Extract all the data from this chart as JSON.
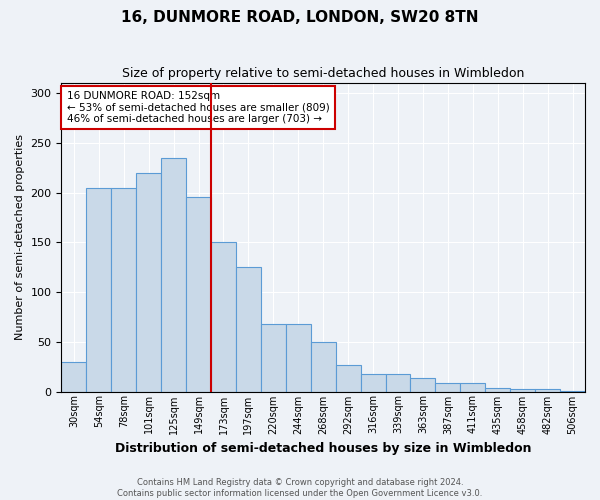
{
  "title": "16, DUNMORE ROAD, LONDON, SW20 8TN",
  "subtitle": "Size of property relative to semi-detached houses in Wimbledon",
  "xlabel": "Distribution of semi-detached houses by size in Wimbledon",
  "ylabel": "Number of semi-detached properties",
  "footer1": "Contains HM Land Registry data © Crown copyright and database right 2024.",
  "footer2": "Contains public sector information licensed under the Open Government Licence v3.0.",
  "annotation_line1": "16 DUNMORE ROAD: 152sqm",
  "annotation_line2": "← 53% of semi-detached houses are smaller (809)",
  "annotation_line3": "46% of semi-detached houses are larger (703) →",
  "property_size": 152,
  "bar_color": "#c9d9e8",
  "bar_edge_color": "#5b9bd5",
  "vline_color": "#cc0000",
  "annotation_box_color": "#cc0000",
  "background_color": "#eef2f7",
  "grid_color": "#ffffff",
  "categories": [
    "30sqm",
    "54sqm",
    "78sqm",
    "101sqm",
    "125sqm",
    "149sqm",
    "173sqm",
    "197sqm",
    "220sqm",
    "244sqm",
    "268sqm",
    "292sqm",
    "316sqm",
    "339sqm",
    "363sqm",
    "387sqm",
    "411sqm",
    "435sqm",
    "458sqm",
    "482sqm",
    "506sqm"
  ],
  "values": [
    30,
    205,
    205,
    220,
    235,
    195,
    150,
    125,
    68,
    68,
    50,
    27,
    18,
    18,
    14,
    9,
    9,
    4,
    3,
    3,
    1
  ],
  "ylim": [
    0,
    310
  ],
  "yticks": [
    0,
    50,
    100,
    150,
    200,
    250,
    300
  ]
}
